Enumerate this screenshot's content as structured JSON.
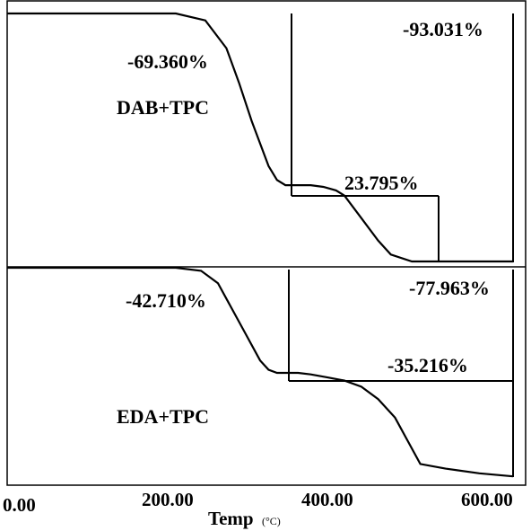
{
  "chart_data": [
    {
      "type": "line",
      "name": "DAB+TPC",
      "xlim": [
        0,
        600
      ],
      "x": [
        0,
        200,
        235,
        260,
        275,
        290,
        300,
        310,
        320,
        330,
        345,
        360,
        375,
        390,
        400,
        420,
        440,
        455,
        480,
        500,
        540,
        600
      ],
      "y": [
        0,
        0,
        -4,
        -20,
        -40,
        -62,
        -75,
        -88,
        -96,
        -99,
        -99,
        -99,
        -100,
        -102,
        -105,
        -118,
        -131,
        -139,
        -143,
        -143,
        -143,
        -143
      ],
      "annotations": [
        "-69.360%",
        "-93.031%",
        "23.795%"
      ],
      "label": "DAB+TPC"
    },
    {
      "type": "line",
      "name": "EDA+TPC",
      "xlim": [
        0,
        600
      ],
      "x": [
        0,
        200,
        230,
        250,
        265,
        285,
        300,
        310,
        320,
        330,
        345,
        360,
        380,
        400,
        420,
        440,
        460,
        475,
        490,
        520,
        560,
        600
      ],
      "y": [
        0,
        0,
        -2,
        -10,
        -25,
        -45,
        -60,
        -66,
        -68,
        -68,
        -68,
        -69,
        -71,
        -73,
        -77,
        -85,
        -97,
        -112,
        -127,
        -130,
        -133,
        -135
      ],
      "annotations": [
        "-42.710%",
        "-77.963%",
        "-35.216%"
      ],
      "label": "EDA+TPC"
    }
  ],
  "axis": {
    "ticks": [
      "0.00",
      "200.00",
      "400.00",
      "600.00"
    ],
    "xlabel_main": "Temp",
    "xlabel_unit": "(°C)"
  }
}
